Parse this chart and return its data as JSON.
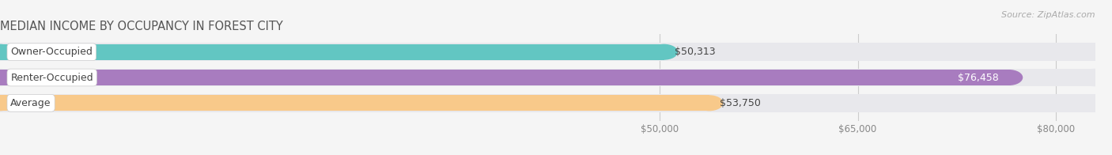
{
  "title": "MEDIAN INCOME BY OCCUPANCY IN FOREST CITY",
  "source": "Source: ZipAtlas.com",
  "categories": [
    "Owner-Occupied",
    "Renter-Occupied",
    "Average"
  ],
  "values": [
    50313,
    76458,
    53750
  ],
  "bar_colors": [
    "#62c6c2",
    "#a87cbf",
    "#f8c98a"
  ],
  "bar_bg_color": "#e8e8ec",
  "bar_bg_border": "#d0d0d8",
  "label_values": [
    "$50,313",
    "$76,458",
    "$53,750"
  ],
  "x_min": 0,
  "x_max": 83000,
  "x_ticks": [
    50000,
    65000,
    80000
  ],
  "x_tick_labels": [
    "$50,000",
    "$65,000",
    "$80,000"
  ],
  "title_fontsize": 10.5,
  "bar_height": 0.62,
  "bar_label_fontsize": 9,
  "cat_label_fontsize": 9,
  "source_fontsize": 8,
  "background_color": "#f5f5f5"
}
